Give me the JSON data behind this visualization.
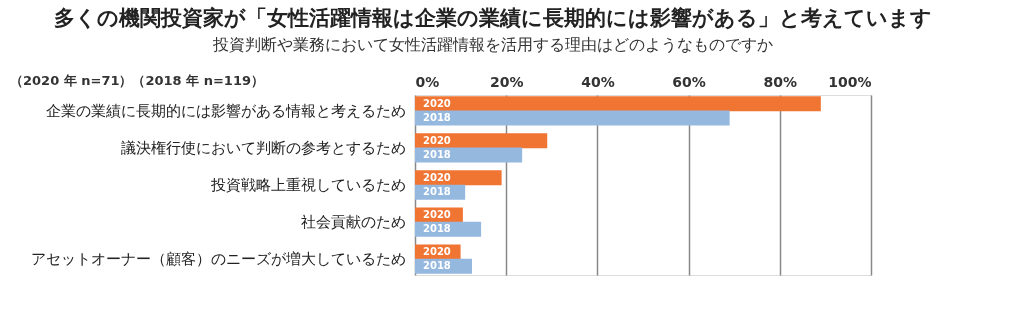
{
  "chart_data": {
    "type": "bar",
    "orientation": "horizontal",
    "title": "多くの機関投資家が「女性活躍情報は企業の業績に長期的には影響がある」と考えています",
    "subtitle": "投資判断や業務において女性活躍情報を活用する理由はどのようなものですか",
    "annotations": [
      "（2020 年 n=71）（2018 年 n=119）"
    ],
    "categories": [
      "企業の業績に長期的には影響がある情報と考えるため",
      "議決権行使において判断の参考とするため",
      "投資戦略上重視しているため",
      "社会貢献のため",
      "アセットオーナー（顧客）のニーズが増大しているため"
    ],
    "series": [
      {
        "name": "2020",
        "color": "#f07533",
        "values": [
          89,
          29,
          19,
          10.5,
          10
        ]
      },
      {
        "name": "2018",
        "color": "#95b8df",
        "values": [
          69,
          23.5,
          11,
          14.5,
          12.5
        ]
      }
    ],
    "xlim": [
      0,
      100
    ],
    "xticks": [
      {
        "value": 0,
        "label": "0%"
      },
      {
        "value": 20,
        "label": "20%"
      },
      {
        "value": 40,
        "label": "40%"
      },
      {
        "value": 60,
        "label": "60%"
      },
      {
        "value": 80,
        "label": "80%"
      },
      {
        "value": 100,
        "label": "100%"
      }
    ],
    "grid": "x",
    "legend": false
  }
}
